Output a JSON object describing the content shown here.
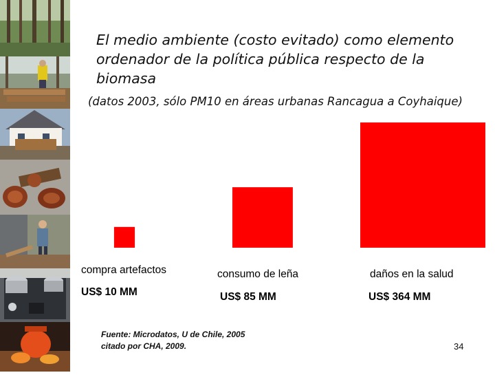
{
  "slide": {
    "title_line1": "El medio ambiente (costo evitado) como elemento",
    "title_line2": "ordenador de la política pública respecto de la biomasa",
    "subtitle": "(datos 2003, sólo PM10 en áreas urbanas Rancagua a Coyhaique)",
    "source_line1": "Fuente: Microdatos, U de Chile, 2005",
    "source_line2": "citado por CHA, 2009.",
    "page_number": "34"
  },
  "photos": [
    {
      "name": "forest-photo"
    },
    {
      "name": "woodcutter-photo"
    },
    {
      "name": "house-woodpile-photo"
    },
    {
      "name": "firewood-logs-photo"
    },
    {
      "name": "person-splitting-wood-photo"
    },
    {
      "name": "wood-stove-photo"
    },
    {
      "name": "clay-pot-fire-photo"
    }
  ],
  "chart_data": {
    "type": "bar",
    "bar_shape": "square-area",
    "categories": [
      "compra artefactos",
      "consumo de leña",
      "daños en la salud"
    ],
    "values": [
      10,
      85,
      364
    ],
    "value_labels": [
      "US$ 10 MM",
      "US$ 85 MM",
      "US$ 364 MM"
    ],
    "color": "#ff0000"
  }
}
